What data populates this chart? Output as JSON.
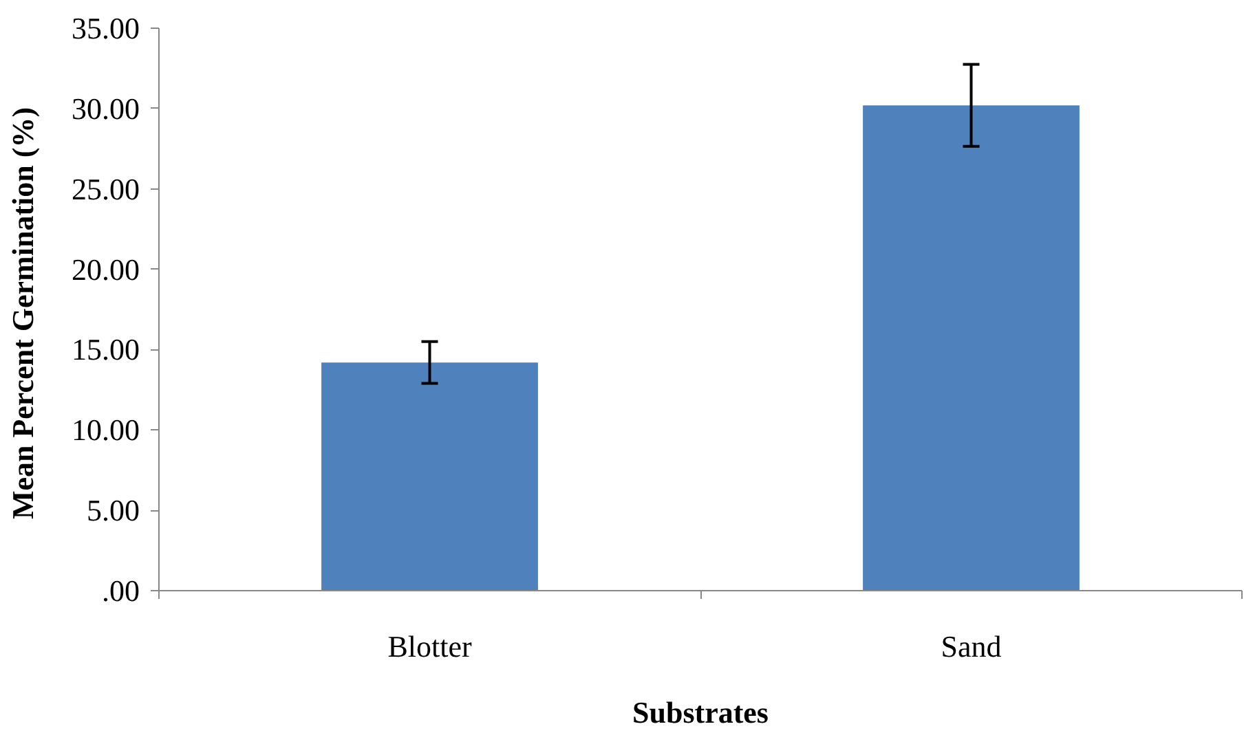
{
  "chart_data": {
    "type": "bar",
    "xlabel": "Substrates",
    "ylabel": "Mean Percent  Germination (%)",
    "categories": [
      "Blotter",
      "Sand"
    ],
    "values": [
      14.2,
      30.2
    ],
    "errors": [
      1.3,
      2.55
    ],
    "color": "#4f81bd",
    "ylim": [
      0,
      35
    ],
    "yticks": [
      {
        "value": 0,
        "label": ".00"
      },
      {
        "value": 5,
        "label": "5.00"
      },
      {
        "value": 10,
        "label": "10.00"
      },
      {
        "value": 15,
        "label": "15.00"
      },
      {
        "value": 20,
        "label": "20.00"
      },
      {
        "value": 25,
        "label": "25.00"
      },
      {
        "value": 30,
        "label": "30.00"
      },
      {
        "value": 35,
        "label": "35.00"
      }
    ],
    "grid": false
  }
}
